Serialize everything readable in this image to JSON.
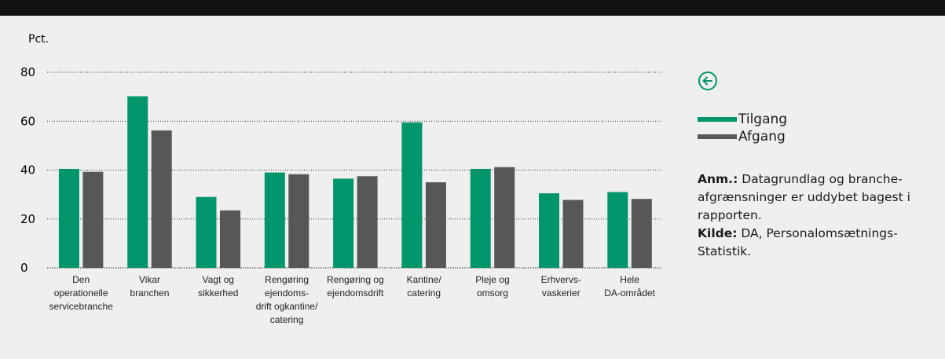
{
  "chart_data": {
    "type": "bar",
    "ylabel": "Pct.",
    "ylim": [
      0,
      80
    ],
    "yticks": [
      0,
      20,
      40,
      60,
      80
    ],
    "categories": [
      [
        "Den",
        "operationelle",
        "servicebranche"
      ],
      [
        "Vikar",
        "branchen"
      ],
      [
        "Vagt og",
        "sikkerhed"
      ],
      [
        "Rengøring",
        "ejendoms-",
        "drift ogkantine/",
        "catering"
      ],
      [
        "Rengøring og",
        "ejendomsdrift"
      ],
      [
        "Kantine/",
        "catering"
      ],
      [
        "Pleje og",
        "omsorg"
      ],
      [
        "Erhvervs-",
        "vaskerier"
      ],
      [
        "Hele",
        "DA-området"
      ]
    ],
    "series": [
      {
        "name": "Tilgang",
        "color": "#00956a",
        "values": [
          40.5,
          70.2,
          29,
          39,
          36.5,
          59.5,
          40.5,
          30.5,
          31
        ]
      },
      {
        "name": "Afgang",
        "color": "#575757",
        "values": [
          39.3,
          56.2,
          23.5,
          38.3,
          37.5,
          35,
          41.2,
          27.8,
          28.2
        ]
      }
    ],
    "grid": "dotted horizontal",
    "legend_position": "right"
  },
  "legend": {
    "icon": "circle-arrow-left-icon",
    "icon_color": "#00956a"
  },
  "note": {
    "anm_label": "Anm.:",
    "anm_text": " Datagrundlag og branche-afgrænsninger er uddybet bagest i rapporten.",
    "kilde_label": "Kilde:",
    "kilde_text": " DA, Personalomsætnings-Statistik."
  }
}
